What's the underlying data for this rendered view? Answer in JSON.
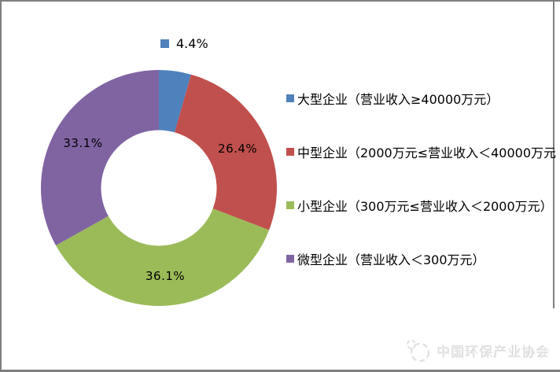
{
  "frame": {
    "border_color": "#7f7f7f"
  },
  "chart_data": {
    "type": "pie",
    "subtype": "donut",
    "hole_ratio": 0.49,
    "start_angle_deg": 0,
    "direction": "clockwise",
    "categories": [
      "大型企业（营业收入≥40000万元）",
      "中型企业（2000万元≤营业收入＜40000万元",
      "小型企业（300万元≤营业收入＜2000万元）",
      "微型企业（营业收入＜300万元）"
    ],
    "values": [
      4.4,
      26.4,
      36.1,
      33.1
    ],
    "labels": [
      "4.4%",
      "26.4%",
      "36.1%",
      "33.1%"
    ],
    "colors": [
      "#4F81BD",
      "#C0504D",
      "#9BBB59",
      "#8064A2"
    ],
    "legend_position": "right",
    "title": ""
  },
  "footer": {
    "watermark_text": "中国环保产业协会"
  }
}
